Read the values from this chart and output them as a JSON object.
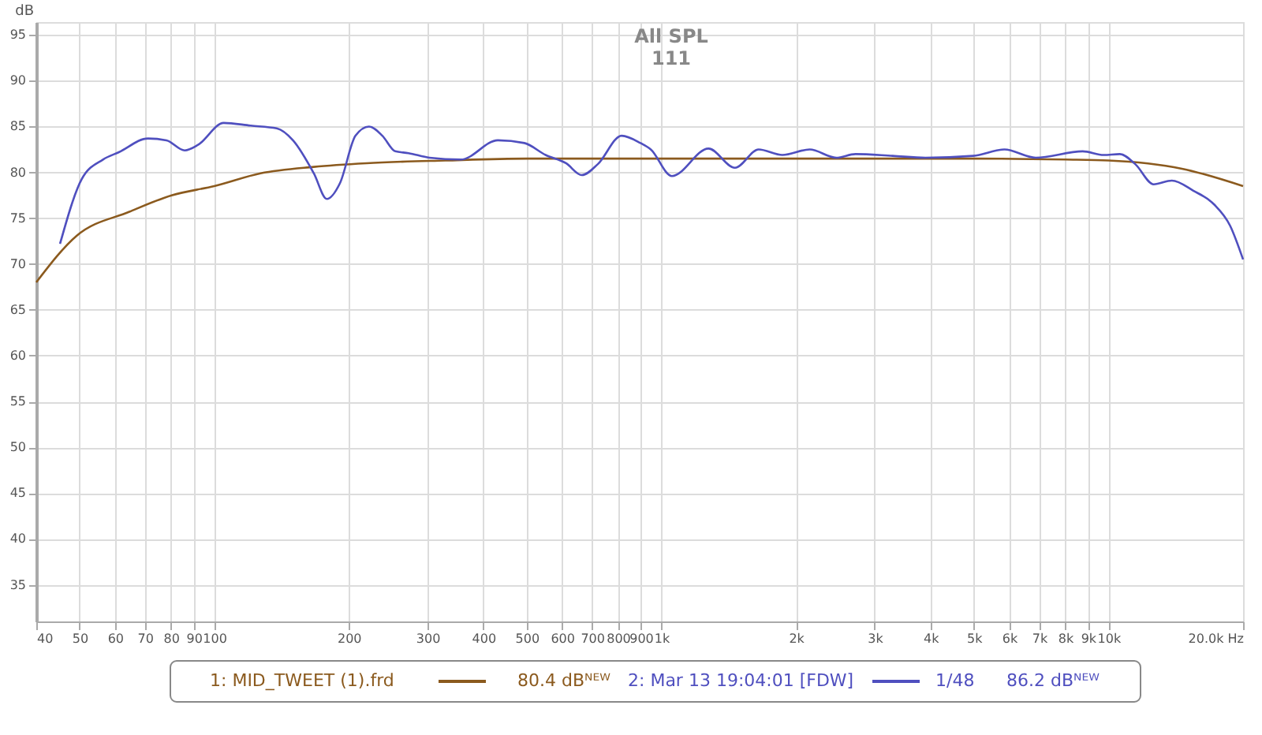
{
  "chart_data": {
    "type": "line",
    "title": "All SPL",
    "subtitle": "111",
    "ylabel": "dB",
    "xlim": [
      40,
      20000
    ],
    "ylim": [
      31,
      96.4
    ],
    "log": "x",
    "grid": true,
    "legend": "bottom",
    "marker": "none",
    "line_style": "solid",
    "xticks": [
      40,
      50,
      60,
      70,
      80,
      90,
      100,
      200,
      300,
      400,
      500,
      600,
      700,
      800,
      900,
      {
        "value": 1000,
        "label": "1k"
      },
      {
        "value": 2000,
        "label": "2k"
      },
      {
        "value": 3000,
        "label": "3k"
      },
      {
        "value": 4000,
        "label": "4k"
      },
      {
        "value": 5000,
        "label": "5k"
      },
      {
        "value": 6000,
        "label": "6k"
      },
      {
        "value": 7000,
        "label": "7k"
      },
      {
        "value": 8000,
        "label": "8k"
      },
      {
        "value": 9000,
        "label": "9k"
      },
      {
        "value": 10000,
        "label": "10k"
      },
      {
        "value": 20000,
        "label": "20.0k Hz"
      }
    ],
    "yticks": [
      35,
      40,
      45,
      50,
      55,
      60,
      65,
      70,
      75,
      80,
      85,
      90,
      95
    ],
    "series": [
      {
        "name": "1: MID_TWEET (1).frd",
        "color": "#8b5a1e",
        "x": [
          40,
          49.3,
          64.6,
          80.3,
          100,
          127,
          167,
          219,
          329,
          500,
          1000,
          2000,
          5000,
          8000,
          10000,
          14600,
          20000
        ],
        "values": [
          68.0,
          73.1,
          75.7,
          77.5,
          78.5,
          79.9,
          80.6,
          81.0,
          81.3,
          81.5,
          81.5,
          81.5,
          81.5,
          81.4,
          81.3,
          80.4,
          78.5
        ]
      },
      {
        "name": "2: Mar 13 19:04:01 [FDW]",
        "color": "#4f4fbf",
        "x": [
          45.2,
          50.6,
          56.4,
          61.2,
          71.1,
          78.2,
          85.9,
          92,
          105,
          120.6,
          138,
          150,
          167,
          178.6,
          191,
          207,
          221.9,
          237.7,
          254,
          272,
          303,
          356,
          431,
          494,
          551,
          612,
          664,
          721,
          815,
          898,
          947,
          1056,
          1275,
          1461,
          1650,
          1865,
          2146,
          2461,
          2718,
          3292,
          3895,
          4982,
          5849,
          6876,
          8757,
          9755,
          10600,
          11480,
          12620,
          13860,
          15480,
          17230,
          18700,
          20000
        ],
        "values": [
          72.2,
          79.3,
          81.4,
          82.2,
          83.7,
          83.5,
          82.4,
          83.0,
          85.4,
          85.1,
          84.8,
          83.5,
          79.9,
          77.1,
          78.8,
          84.0,
          85.0,
          84.0,
          82.3,
          82.1,
          81.6,
          81.4,
          83.5,
          83.2,
          81.9,
          81.0,
          79.7,
          80.9,
          84.0,
          83.2,
          82.5,
          79.6,
          82.6,
          80.5,
          82.5,
          81.9,
          82.5,
          81.6,
          82.0,
          81.8,
          81.6,
          81.8,
          82.5,
          81.6,
          82.3,
          81.9,
          82.0,
          80.9,
          78.7,
          79.1,
          78.0,
          76.5,
          74.2,
          70.5
        ]
      }
    ],
    "annotations": [
      "80.4 dBᴺᴱᵂ",
      "1/48",
      "86.2 dBᴺᴱᵂ"
    ]
  }
}
